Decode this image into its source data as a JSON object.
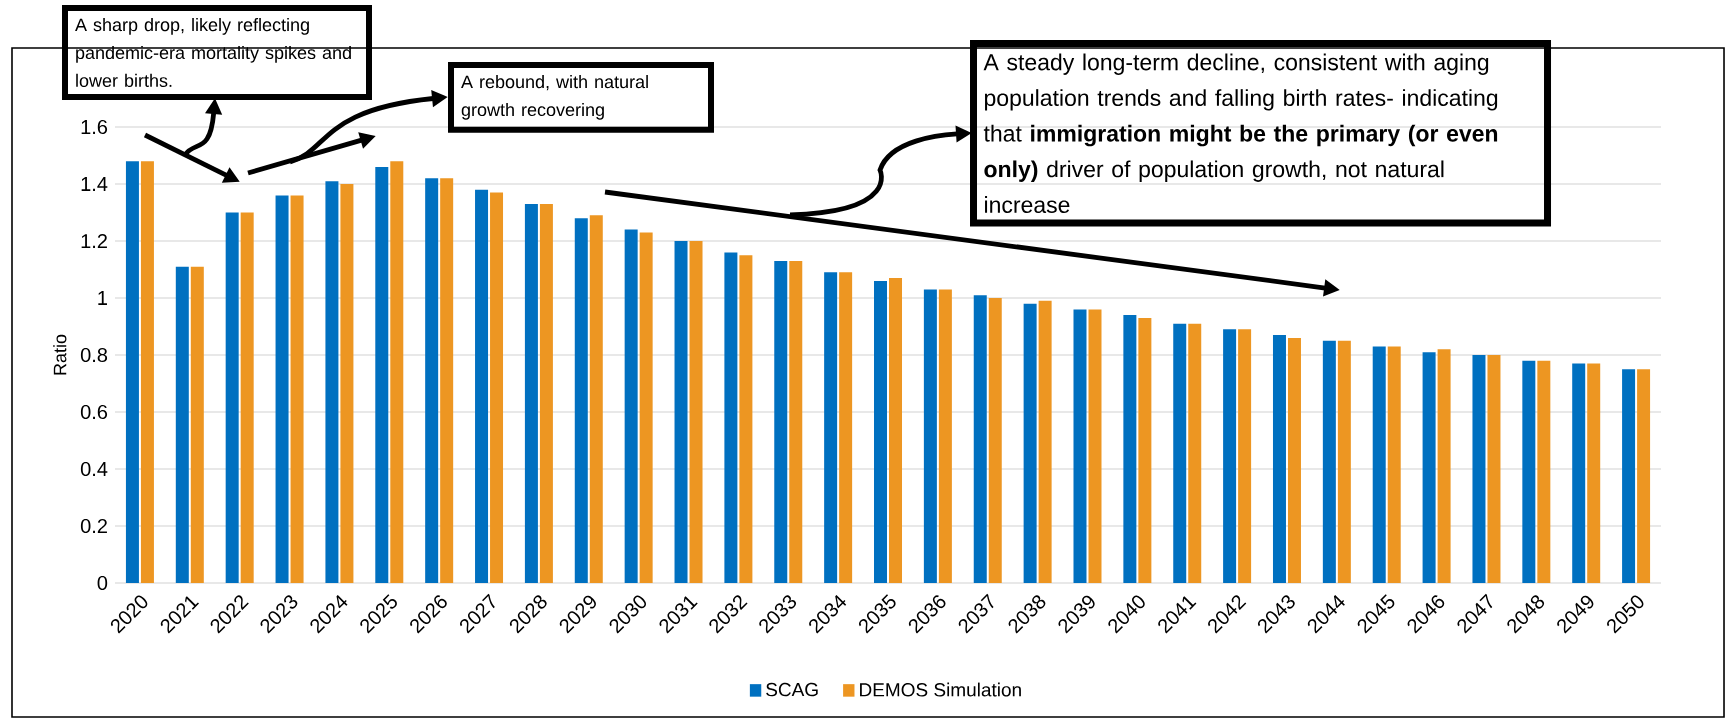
{
  "chart_data": {
    "type": "bar",
    "ylabel": "Ratio",
    "categories": [
      "2020",
      "2021",
      "2022",
      "2023",
      "2024",
      "2025",
      "2026",
      "2027",
      "2028",
      "2029",
      "2030",
      "2031",
      "2032",
      "2033",
      "2034",
      "2035",
      "2036",
      "2037",
      "2038",
      "2039",
      "2040",
      "2041",
      "2042",
      "2043",
      "2044",
      "2045",
      "2046",
      "2047",
      "2048",
      "2049",
      "2050"
    ],
    "series": [
      {
        "name": "SCAG",
        "color": "#0070c0",
        "values": [
          1.48,
          1.11,
          1.3,
          1.36,
          1.41,
          1.46,
          1.42,
          1.38,
          1.33,
          1.28,
          1.24,
          1.2,
          1.16,
          1.13,
          1.09,
          1.06,
          1.03,
          1.01,
          0.98,
          0.96,
          0.94,
          0.91,
          0.89,
          0.87,
          0.85,
          0.83,
          0.81,
          0.8,
          0.78,
          0.77,
          0.75
        ]
      },
      {
        "name": "DEMOS Simulation",
        "color": "#ed9622",
        "values": [
          1.48,
          1.11,
          1.3,
          1.36,
          1.4,
          1.48,
          1.42,
          1.37,
          1.33,
          1.29,
          1.23,
          1.2,
          1.15,
          1.13,
          1.09,
          1.07,
          1.03,
          1.0,
          0.99,
          0.96,
          0.93,
          0.91,
          0.89,
          0.86,
          0.85,
          0.83,
          0.82,
          0.8,
          0.78,
          0.77,
          0.75
        ]
      }
    ],
    "ylim": [
      0,
      1.6
    ],
    "yticks": [
      0,
      0.2,
      0.4,
      0.6,
      0.8,
      1,
      1.2,
      1.4,
      1.6
    ],
    "grid": "y",
    "legend": "bottom",
    "annotations": [
      "A sharp drop, likely reflecting pandemic-era mortality spikes and lower births.",
      "A rebound, with natural growth recovering",
      "A steady long-term decline, consistent with aging population trends and falling birth rates- indicating that **immigration might be the primary (or even only)** driver of population growth, not natural increase"
    ]
  }
}
